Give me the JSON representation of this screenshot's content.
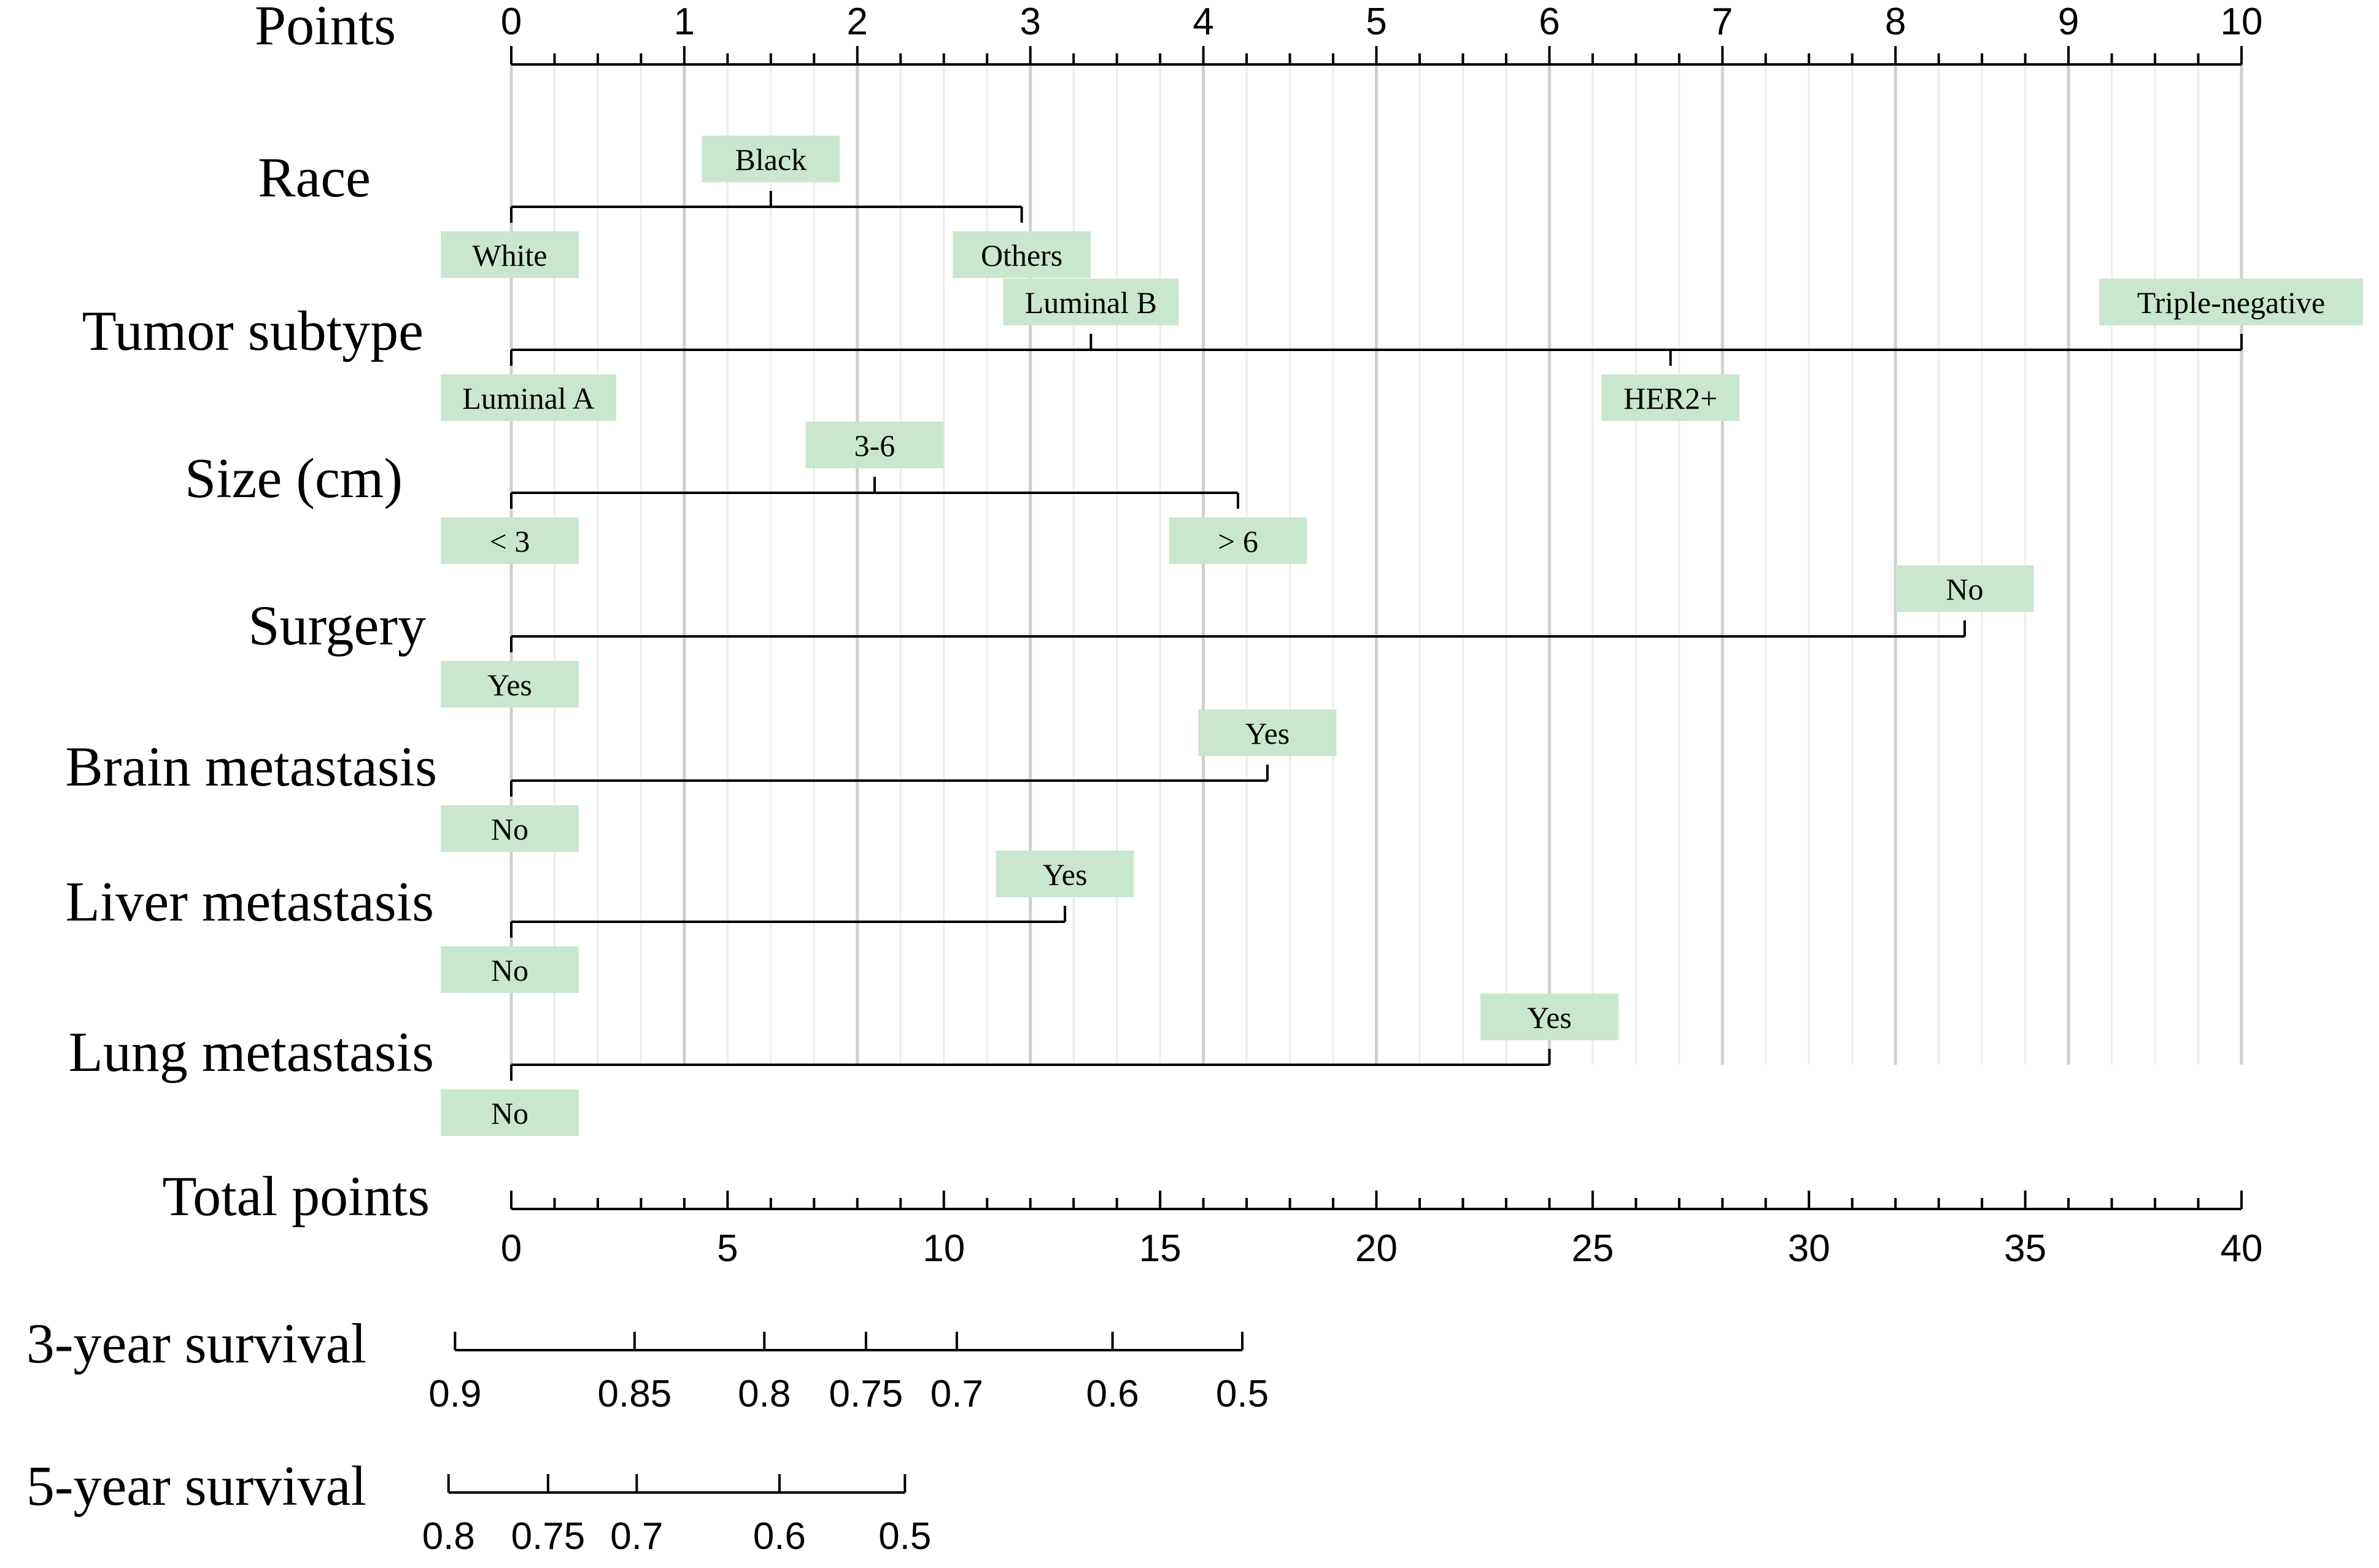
{
  "colors": {
    "label_box": "#c9e7cf",
    "line": "#000000",
    "grid_major": "#cfcfcf",
    "grid_minor": "#ececec"
  },
  "chart_data": {
    "type": "nomogram",
    "points_axis": {
      "title": "Points",
      "range": [
        0,
        10
      ],
      "ticks": [
        "0",
        "1",
        "2",
        "3",
        "4",
        "5",
        "6",
        "7",
        "8",
        "9",
        "10"
      ],
      "minor_step": 0.25
    },
    "predictors": [
      {
        "name": "Race",
        "levels": [
          {
            "label": "White",
            "points": 0
          },
          {
            "label": "Black",
            "points": 1.5
          },
          {
            "label": "Others",
            "points": 2.95
          }
        ]
      },
      {
        "name": "Tumor subtype",
        "levels": [
          {
            "label": "Luminal A",
            "points": 0
          },
          {
            "label": "Luminal B",
            "points": 3.35
          },
          {
            "label": "HER2+",
            "points": 6.7
          },
          {
            "label": "Triple-negative",
            "points": 10
          }
        ]
      },
      {
        "name": "Size (cm)",
        "levels": [
          {
            "label": "< 3",
            "points": 0
          },
          {
            "label": "3-6",
            "points": 2.1
          },
          {
            "label": "> 6",
            "points": 4.2
          }
        ]
      },
      {
        "name": "Surgery",
        "levels": [
          {
            "label": "Yes",
            "points": 0
          },
          {
            "label": "No",
            "points": 8.4
          }
        ]
      },
      {
        "name": "Brain metastasis",
        "levels": [
          {
            "label": "No",
            "points": 0
          },
          {
            "label": "Yes",
            "points": 4.37
          }
        ]
      },
      {
        "name": "Liver metastasis",
        "levels": [
          {
            "label": "No",
            "points": 0
          },
          {
            "label": "Yes",
            "points": 3.2
          }
        ]
      },
      {
        "name": "Lung metastasis",
        "levels": [
          {
            "label": "No",
            "points": 0
          },
          {
            "label": "Yes",
            "points": 6
          }
        ]
      }
    ],
    "total_points_axis": {
      "title": "Total points",
      "range": [
        0,
        40
      ],
      "ticks": [
        "0",
        "5",
        "10",
        "15",
        "20",
        "25",
        "30",
        "35",
        "40"
      ],
      "minor_step": 1
    },
    "survival_axes": [
      {
        "title": "3-year survival",
        "ticks": [
          {
            "label": "0.9",
            "total_points": -1.3
          },
          {
            "label": "0.85",
            "total_points": 2.85
          },
          {
            "label": "0.8",
            "total_points": 5.85
          },
          {
            "label": "0.75",
            "total_points": 8.2
          },
          {
            "label": "0.7",
            "total_points": 10.3
          },
          {
            "label": "0.6",
            "total_points": 13.9
          },
          {
            "label": "0.5",
            "total_points": 16.9
          }
        ]
      },
      {
        "title": "5-year survival",
        "ticks": [
          {
            "label": "0.8",
            "total_points": -1.45
          },
          {
            "label": "0.75",
            "total_points": 0.85
          },
          {
            "label": "0.7",
            "total_points": 2.9
          },
          {
            "label": "0.6",
            "total_points": 6.2
          },
          {
            "label": "0.5",
            "total_points": 9.1
          }
        ]
      }
    ]
  }
}
